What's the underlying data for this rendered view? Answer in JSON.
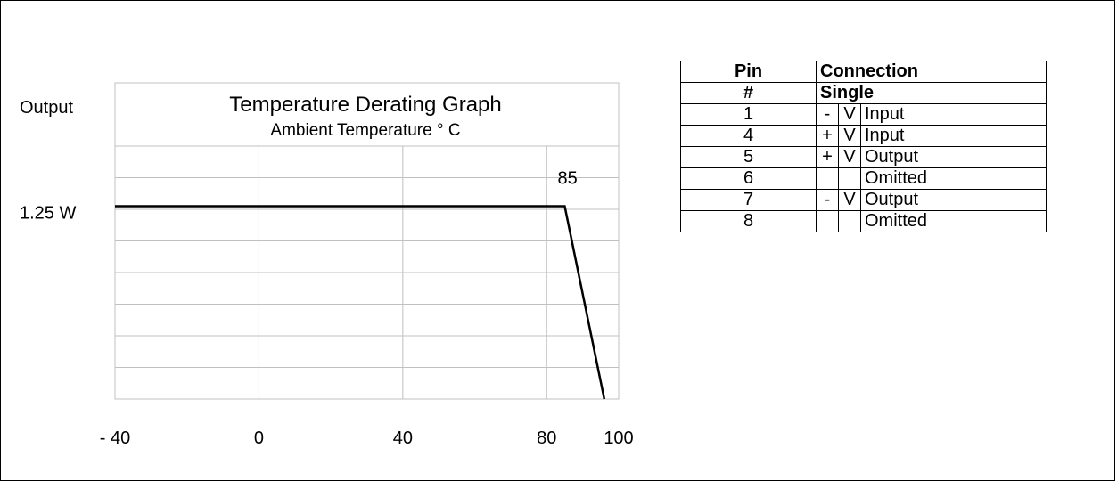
{
  "chart_data": {
    "type": "line",
    "title": "Temperature Derating Graph",
    "subtitle": "Ambient Temperature ° C",
    "ylabel": "Output",
    "x_ticks": [
      "- 40",
      "0",
      "40",
      "80",
      "100"
    ],
    "x_tick_values": [
      -40,
      0,
      40,
      80,
      100
    ],
    "xlim": [
      -40,
      100
    ],
    "y_tick_labels": [
      "1.25 W"
    ],
    "y_tick_values": [
      1.25
    ],
    "ylim": [
      0,
      2.05
    ],
    "grid": true,
    "series": [
      {
        "x": [
          -40,
          85,
          96
        ],
        "y": [
          1.25,
          1.25,
          0
        ]
      }
    ],
    "annotations": [
      {
        "text": "85",
        "x": 85
      }
    ],
    "line_color": "#000000",
    "grid_color": "#c0c0c0"
  },
  "pin_table": {
    "headers": [
      {
        "pin": "Pin",
        "connection": "Connection"
      },
      {
        "pin": "#",
        "connection": "Single"
      }
    ],
    "rows": [
      {
        "pin": "1",
        "sign": "-",
        "v": "V",
        "desc": "Input"
      },
      {
        "pin": "4",
        "sign": "+",
        "v": "V",
        "desc": "Input"
      },
      {
        "pin": "5",
        "sign": "+",
        "v": "V",
        "desc": "Output"
      },
      {
        "pin": "6",
        "sign": "",
        "v": "",
        "desc": "Omitted"
      },
      {
        "pin": "7",
        "sign": "-",
        "v": "V",
        "desc": "Output"
      },
      {
        "pin": "8",
        "sign": "",
        "v": "",
        "desc": "Omitted"
      }
    ]
  }
}
